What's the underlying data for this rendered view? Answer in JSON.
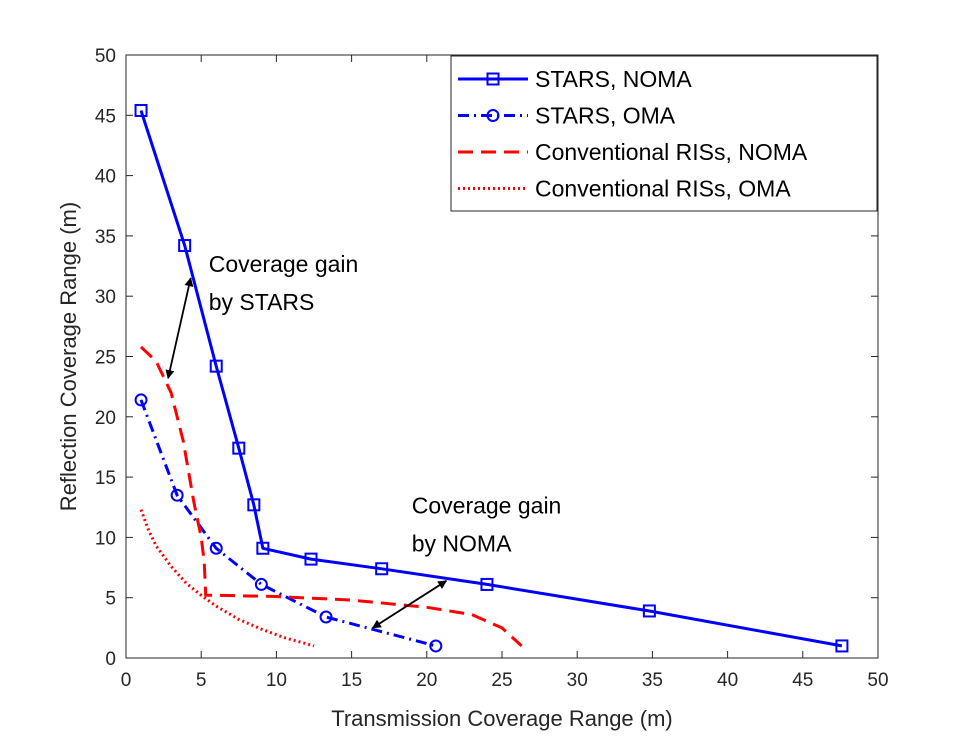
{
  "chart_data": {
    "type": "line",
    "title": "",
    "xlabel": "Transmission Coverage Range (m)",
    "ylabel": "Reflection Coverage Range (m)",
    "xlim": [
      0,
      50
    ],
    "ylim": [
      0,
      50
    ],
    "xticks": [
      0,
      5,
      10,
      15,
      20,
      25,
      30,
      35,
      40,
      45,
      50
    ],
    "yticks": [
      0,
      5,
      10,
      15,
      20,
      25,
      30,
      35,
      40,
      45,
      50
    ],
    "grid": false,
    "legend_position": "top-right",
    "series": [
      {
        "name": "STARS, NOMA",
        "color": "#0000ff",
        "style": "solid",
        "marker": "square",
        "x": [
          1.0,
          3.9,
          6.0,
          7.5,
          8.5,
          9.1,
          12.3,
          17.0,
          24.0,
          34.8,
          47.6
        ],
        "y": [
          45.4,
          34.2,
          24.2,
          17.4,
          12.7,
          9.1,
          8.2,
          7.4,
          6.1,
          3.9,
          1.0
        ]
      },
      {
        "name": "STARS, OMA",
        "color": "#0000ff",
        "style": "dashdot",
        "marker": "circle",
        "x": [
          1.0,
          3.4,
          6.0,
          9.0,
          13.3,
          20.6
        ],
        "y": [
          21.4,
          13.5,
          9.1,
          6.1,
          3.4,
          1.0
        ]
      },
      {
        "name": "Conventional RISs, NOMA",
        "color": "#ff0000",
        "style": "dashed",
        "marker": "none",
        "x": [
          1.0,
          2.0,
          3.0,
          3.8,
          4.5,
          5.0,
          5.2,
          5.3,
          6.0,
          10.0,
          15.0,
          20.0,
          23.0,
          25.0,
          26.3
        ],
        "y": [
          25.8,
          24.6,
          22.0,
          18.0,
          13.0,
          10.0,
          8.0,
          5.2,
          5.2,
          5.1,
          4.8,
          4.2,
          3.6,
          2.5,
          1.0
        ]
      },
      {
        "name": "Conventional RISs, OMA",
        "color": "#ff0000",
        "style": "dotted",
        "marker": "none",
        "x": [
          1.0,
          1.5,
          2.0,
          3.0,
          4.0,
          5.0,
          6.0,
          7.5,
          9.0,
          10.5,
          12.5
        ],
        "y": [
          12.3,
          10.6,
          9.3,
          7.6,
          6.2,
          5.2,
          4.3,
          3.2,
          2.4,
          1.7,
          1.0
        ]
      }
    ],
    "annotations": [
      {
        "lines": [
          "Coverage gain",
          "by STARS"
        ],
        "text_x": 5.5,
        "text_y": 32.0,
        "arrow_from": [
          4.3,
          31.5
        ],
        "arrow_to": [
          2.8,
          23.2
        ]
      },
      {
        "lines": [
          "Coverage gain",
          "by NOMA"
        ],
        "text_x": 19.0,
        "text_y": 12.0,
        "arrow_from": [
          21.3,
          6.4
        ],
        "arrow_to": [
          16.4,
          2.5
        ]
      }
    ]
  }
}
